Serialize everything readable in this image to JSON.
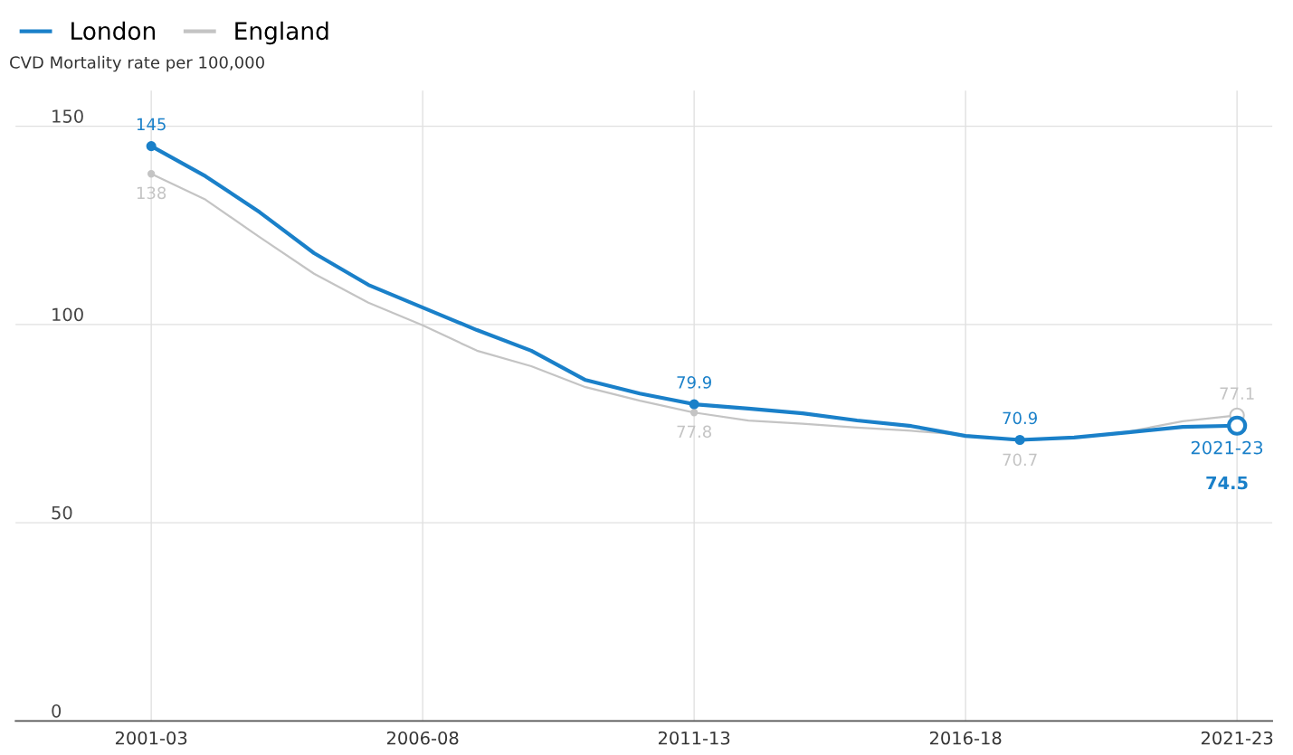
{
  "chart_data": {
    "type": "line",
    "ylabel": "CVD Mortality rate per 100,000",
    "categories": [
      "2001-03",
      null,
      null,
      null,
      null,
      "2006-08",
      null,
      null,
      null,
      null,
      "2011-13",
      null,
      null,
      null,
      null,
      "2016-18",
      null,
      null,
      null,
      null,
      "2021-23"
    ],
    "series": [
      {
        "name": "England",
        "color": "#c4c4c4",
        "values": [
          138,
          131.5,
          122,
          112.8,
          105.5,
          99.8,
          93.4,
          89.5,
          84.2,
          80.8,
          77.8,
          75.8,
          75,
          74,
          73.2,
          72.1,
          70.7,
          71.5,
          73,
          75.6,
          77.1
        ],
        "value_labels": [
          "138",
          null,
          null,
          null,
          null,
          null,
          null,
          null,
          null,
          null,
          "77.8",
          null,
          null,
          null,
          null,
          null,
          "70.7",
          null,
          null,
          null,
          "77.1"
        ]
      },
      {
        "name": "London",
        "color": "#1a80c9",
        "values": [
          145,
          137.4,
          128.3,
          118,
          110,
          104.3,
          98.6,
          93.4,
          86,
          82.6,
          79.9,
          78.8,
          77.6,
          75.8,
          74.4,
          71.9,
          70.9,
          71.5,
          72.8,
          74.2,
          74.5
        ],
        "value_labels": [
          "145",
          null,
          null,
          null,
          null,
          null,
          null,
          null,
          null,
          null,
          "79.9",
          null,
          null,
          null,
          null,
          null,
          "70.9",
          null,
          null,
          null,
          "74.5"
        ]
      }
    ],
    "annotations": [
      {
        "text": "2021-23",
        "x": "2021-23",
        "y": 74.5
      }
    ],
    "ylim": [
      0,
      159
    ],
    "yticks": [
      0,
      50,
      100,
      150
    ],
    "grid": true,
    "legend": "top left"
  }
}
